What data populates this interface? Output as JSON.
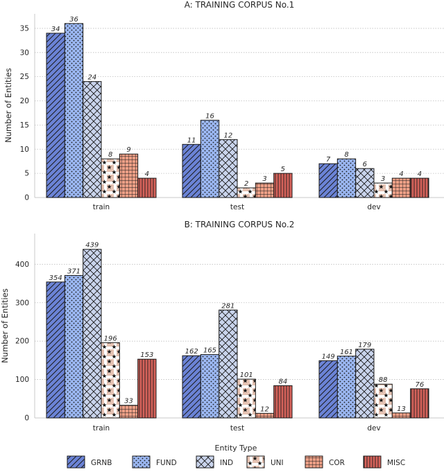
{
  "colors": {
    "GRNB": "#6b83d6",
    "FUND": "#9ab6f0",
    "IND": "#c9d4ec",
    "UNI": "#e6c3b3",
    "COR": "#ec9f86",
    "MISC": "#d5625a",
    "grid": "#bdbdbd",
    "axis": "#c8c8c8"
  },
  "patterns": {
    "GRNB": "diagonal-hatch",
    "FUND": "dots",
    "IND": "cross-hatch",
    "UNI": "stars",
    "COR": "grid",
    "MISC": "vertical-lines"
  },
  "legend": {
    "title": "Entity Type",
    "entries": [
      "GRNB",
      "FUND",
      "IND",
      "UNI",
      "COR",
      "MISC"
    ]
  },
  "chart_data": [
    {
      "type": "bar",
      "title": "A:    TRAINING CORPUS No.1",
      "xlabel": "",
      "ylabel": "Number of Entities",
      "categories": [
        "train",
        "test",
        "dev"
      ],
      "yticks": [
        0,
        5,
        10,
        15,
        20,
        25,
        30,
        35
      ],
      "ylim": [
        0,
        38
      ],
      "grid": "horizontal dotted",
      "series": [
        {
          "name": "GRNB",
          "values": [
            34,
            11,
            7
          ]
        },
        {
          "name": "FUND",
          "values": [
            36,
            16,
            8
          ]
        },
        {
          "name": "IND",
          "values": [
            24,
            12,
            6
          ]
        },
        {
          "name": "UNI",
          "values": [
            8,
            2,
            3
          ]
        },
        {
          "name": "COR",
          "values": [
            9,
            3,
            4
          ]
        },
        {
          "name": "MISC",
          "values": [
            4,
            5,
            4
          ]
        }
      ]
    },
    {
      "type": "bar",
      "title": "B:    TRAINING CORPUS No.2",
      "xlabel": "Entity Type",
      "ylabel": "Number of Entities",
      "categories": [
        "train",
        "test",
        "dev"
      ],
      "yticks": [
        0,
        100,
        200,
        300,
        400
      ],
      "ylim": [
        0,
        480
      ],
      "grid": "horizontal dotted",
      "series": [
        {
          "name": "GRNB",
          "values": [
            354,
            162,
            149
          ]
        },
        {
          "name": "FUND",
          "values": [
            371,
            165,
            161
          ]
        },
        {
          "name": "IND",
          "values": [
            439,
            281,
            179
          ]
        },
        {
          "name": "UNI",
          "values": [
            196,
            101,
            88
          ]
        },
        {
          "name": "COR",
          "values": [
            33,
            12,
            13
          ]
        },
        {
          "name": "MISC",
          "values": [
            153,
            84,
            76
          ]
        }
      ]
    }
  ]
}
